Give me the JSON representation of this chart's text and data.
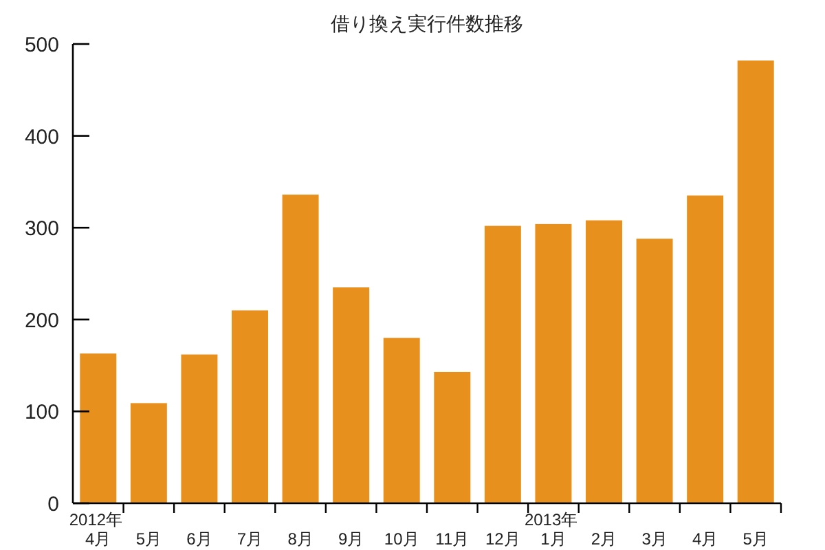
{
  "chart_data": {
    "type": "bar",
    "title": "借り換え実行件数推移",
    "categories": [
      "2012年 4月",
      "5月",
      "6月",
      "7月",
      "8月",
      "9月",
      "10月",
      "11月",
      "12月",
      "2013年 1月",
      "2月",
      "3月",
      "4月",
      "5月"
    ],
    "values": [
      163,
      109,
      162,
      210,
      336,
      235,
      180,
      143,
      302,
      304,
      308,
      288,
      335,
      482
    ],
    "color": "#e8901e",
    "ylim": [
      0,
      500
    ],
    "yticks": [
      0,
      100,
      200,
      300,
      400,
      500
    ]
  }
}
